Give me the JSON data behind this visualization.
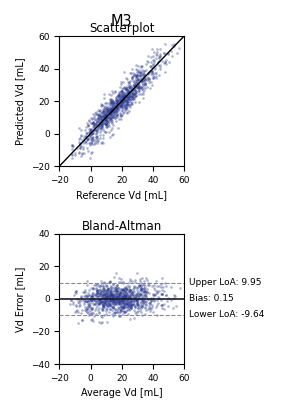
{
  "title": "M3",
  "scatter_title": "Scatterplot",
  "ba_title": "Bland-Altman",
  "scatter_xlabel": "Reference Vd [mL]",
  "scatter_ylabel": "Predicted Vd [mL]",
  "ba_xlabel": "Average Vd [mL]",
  "ba_ylabel": "Vd Error [mL]",
  "scatter_xlim": [
    -20,
    60
  ],
  "scatter_ylim": [
    -20,
    60
  ],
  "ba_xlim": [
    -20,
    60
  ],
  "ba_ylim": [
    -40,
    40
  ],
  "upper_loa": 9.95,
  "bias": 0.15,
  "lower_loa": -9.64,
  "dot_color": "#2B3A8F",
  "dot_alpha": 0.38,
  "dot_size": 3.5,
  "bias_line_color": "#1a1a2e",
  "loa_line_color": "#888888",
  "identity_color": "black",
  "n_points": 1000,
  "seed": 42,
  "annot_upper": "Upper LoA: 9.95",
  "annot_bias": "Bias: 0.15",
  "annot_lower": "Lower LoA: -9.64"
}
